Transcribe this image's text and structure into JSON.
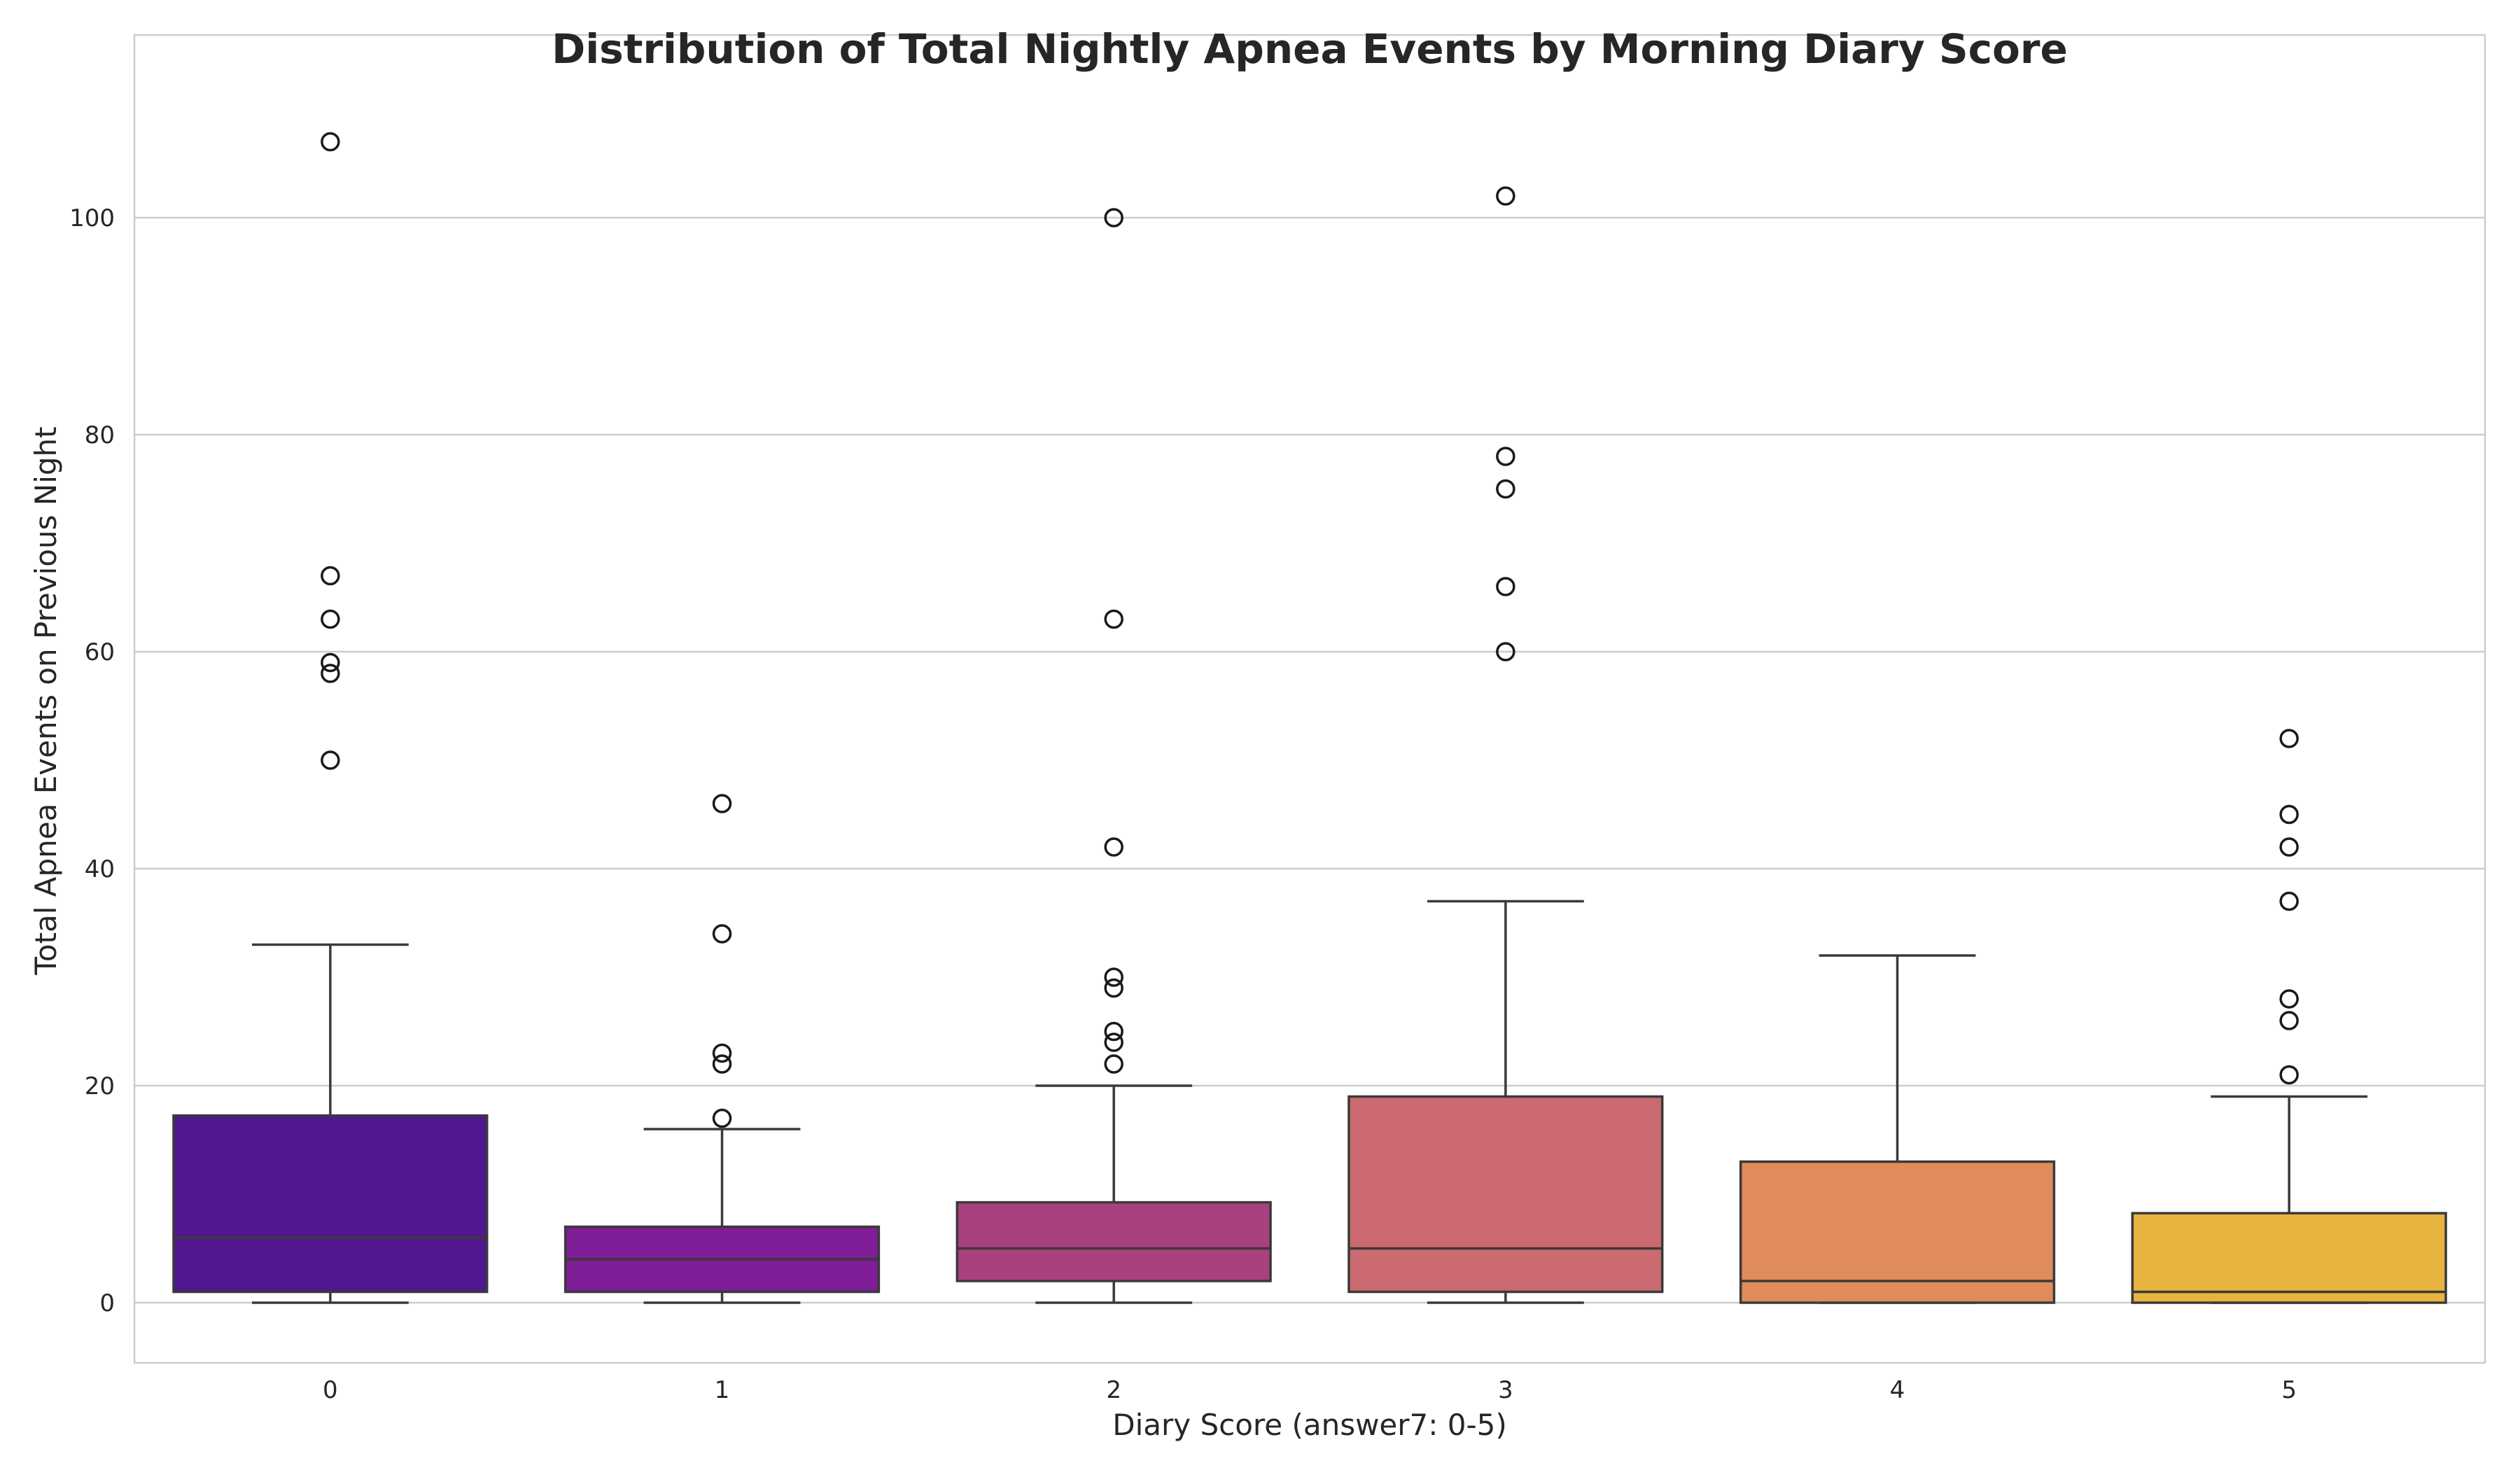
{
  "chart_data": {
    "type": "box",
    "title": "Distribution of Total Nightly Apnea Events by Morning Diary Score",
    "xlabel": "Diary Score (answer7: 0-5)",
    "ylabel": "Total Apnea Events on Previous Night",
    "ylim": [
      -5.5,
      112.5
    ],
    "yticks": [
      0,
      20,
      40,
      60,
      80,
      100
    ],
    "grid": true,
    "categories": [
      "0",
      "1",
      "2",
      "3",
      "4",
      "5"
    ],
    "colors": [
      "#50178f",
      "#7f1d96",
      "#a8417e",
      "#cb6a70",
      "#e08b5a",
      "#e8b33f"
    ],
    "boxes": [
      {
        "category": "0",
        "whislo": 0,
        "q1": 1,
        "med": 6,
        "q3": 17.25,
        "whishi": 33,
        "fliers": [
          50,
          58,
          59,
          63,
          67,
          107
        ]
      },
      {
        "category": "1",
        "whislo": 0,
        "q1": 1,
        "med": 4,
        "q3": 7,
        "whishi": 16,
        "fliers": [
          17,
          22,
          23,
          34,
          46
        ]
      },
      {
        "category": "2",
        "whislo": 0,
        "q1": 2,
        "med": 5,
        "q3": 9.25,
        "whishi": 20,
        "fliers": [
          22,
          24,
          25,
          29,
          30,
          42,
          63,
          100
        ]
      },
      {
        "category": "3",
        "whislo": 0,
        "q1": 1,
        "med": 5,
        "q3": 19,
        "whishi": 37,
        "fliers": [
          60,
          66,
          75,
          78,
          102
        ]
      },
      {
        "category": "4",
        "whislo": 0,
        "q1": 0,
        "med": 2,
        "q3": 13,
        "whishi": 32,
        "fliers": []
      },
      {
        "category": "5",
        "whislo": 0,
        "q1": 0,
        "med": 1,
        "q3": 8.25,
        "whishi": 19,
        "fliers": [
          21,
          26,
          28,
          37,
          42,
          45,
          52
        ]
      }
    ]
  }
}
